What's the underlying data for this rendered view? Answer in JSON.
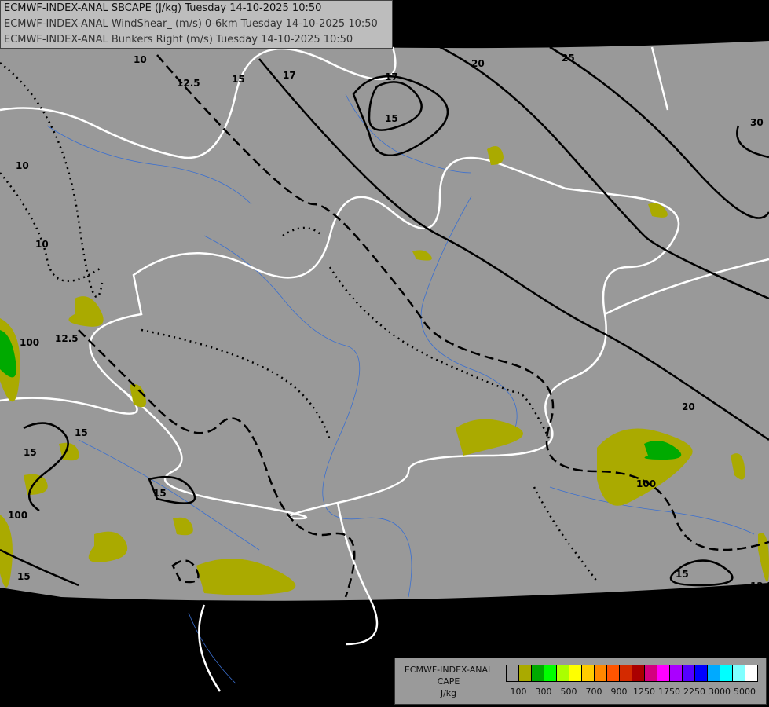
{
  "header": {
    "lines": [
      "ECMWF-INDEX-ANAL SBCAPE (J/kg) Tuesday 14-10-2025 10:50",
      "ECMWF-INDEX-ANAL WindShear_ (m/s) 0-6km Tuesday 14-10-2025 10:50",
      "ECMWF-INDEX-ANAL Bunkers Right (m/s) Tuesday 14-10-2025 10:50"
    ]
  },
  "legend": {
    "title_lines": [
      "ECMWF-INDEX-ANAL",
      "CAPE",
      "J/kg"
    ],
    "colors": [
      "#999999",
      "#aaaa00",
      "#00aa00",
      "#00ff00",
      "#aaff00",
      "#ffff00",
      "#ffcc00",
      "#ff8800",
      "#ff5500",
      "#d42a00",
      "#aa0000",
      "#d4007f",
      "#ff00ff",
      "#aa00ff",
      "#5500ff",
      "#0000ff",
      "#00aaff",
      "#00ffff",
      "#80ffff",
      "#ffffff"
    ],
    "tick_labels": [
      "100",
      "300",
      "500",
      "700",
      "900",
      "1250",
      "1750",
      "2250",
      "3000",
      "5000"
    ]
  },
  "map": {
    "background_color": "#999999",
    "outside_color": "#000000",
    "border_color": "#ffffff",
    "river_color": "#3a6fd0",
    "cape_fill_color": "#aaaa00",
    "cape_high_color": "#00aa00",
    "contour_labels": [
      "10",
      "12.5",
      "15",
      "17",
      "20",
      "25",
      "30",
      "100"
    ]
  }
}
